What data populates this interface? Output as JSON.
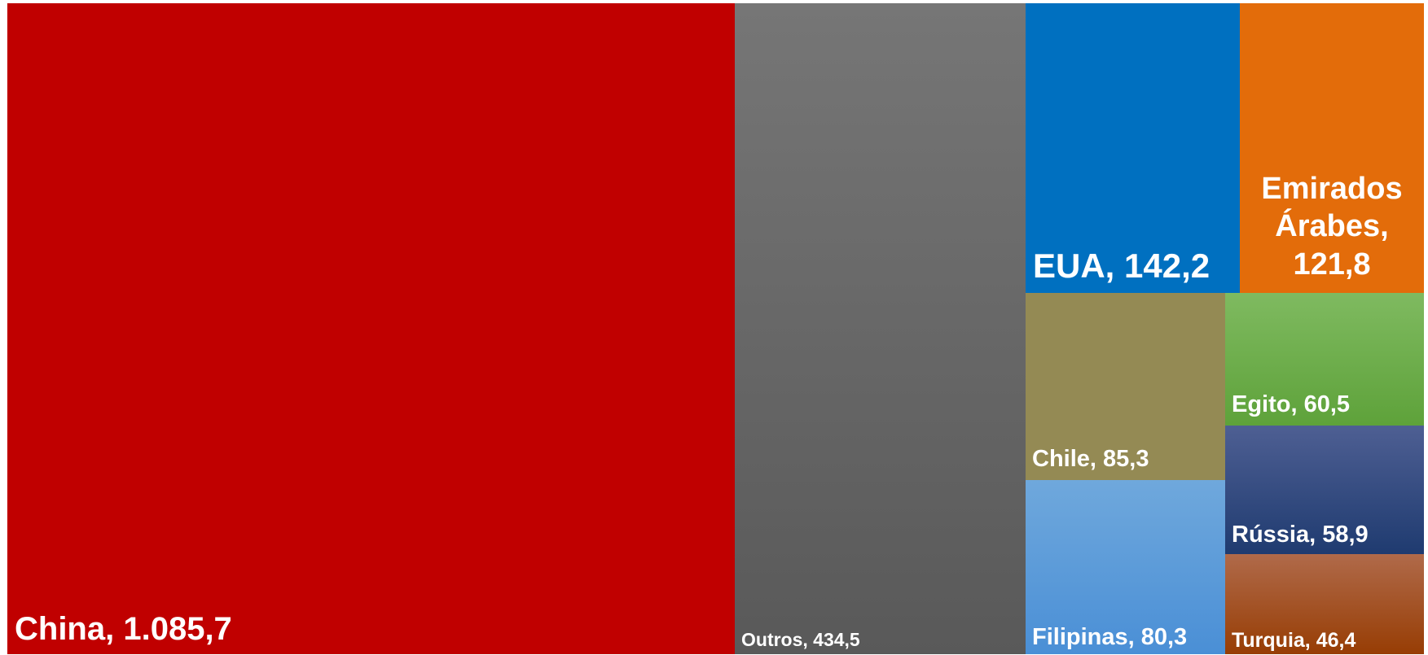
{
  "chart_data": {
    "type": "treemap",
    "title": "",
    "items": [
      {
        "name": "China",
        "value": 1085.7,
        "label": "China, 1.085,7",
        "color": "#c00000"
      },
      {
        "name": "Outros",
        "value": 434.5,
        "label": "Outros, 434,5",
        "color": "#767676",
        "color_end": "#595959"
      },
      {
        "name": "EUA",
        "value": 142.2,
        "label": "EUA, 142,2",
        "color": "#0070c0"
      },
      {
        "name": "Emirados Árabes",
        "value": 121.8,
        "label": "Emirados Árabes, 121,8",
        "color": "#e36c0a"
      },
      {
        "name": "Chile",
        "value": 85.3,
        "label": "Chile, 85,3",
        "color": "#948a54"
      },
      {
        "name": "Filipinas",
        "value": 80.3,
        "label": "Filipinas, 80,3",
        "color": "#6fa8dc",
        "color_end": "#4a8fd6"
      },
      {
        "name": "Egito",
        "value": 60.5,
        "label": "Egito, 60,5",
        "color": "#7fba60",
        "color_end": "#5ea23a"
      },
      {
        "name": "Rússia",
        "value": 58.9,
        "label": "Rússia, 58,9",
        "color": "#4e5f93",
        "color_end": "#1f3b70"
      },
      {
        "name": "Turquia",
        "value": 46.4,
        "label": "Turquia, 46,4",
        "color": "#b06a4a",
        "color_end": "#973d04"
      }
    ]
  }
}
